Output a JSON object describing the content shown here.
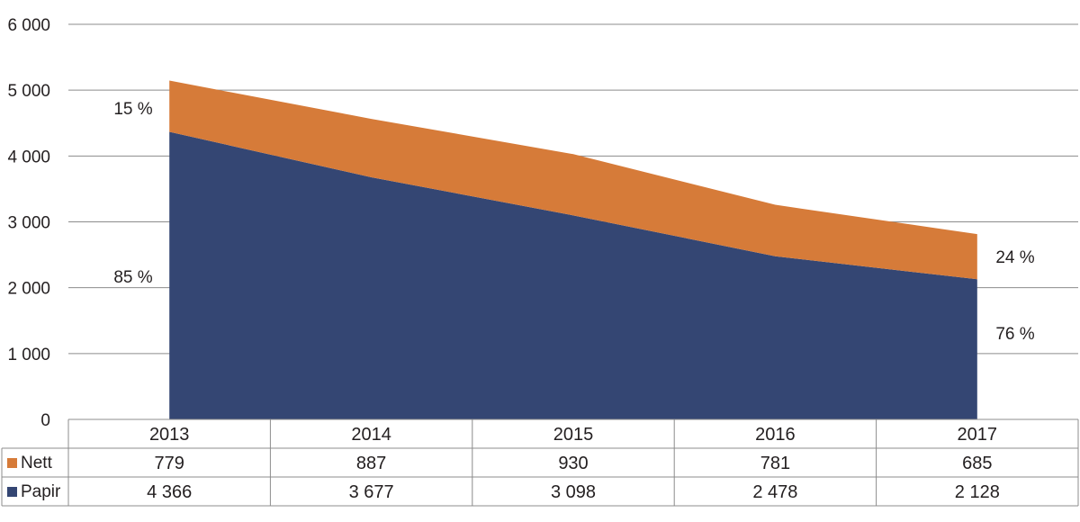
{
  "chart_data": {
    "type": "area",
    "stacked": true,
    "categories": [
      "2013",
      "2014",
      "2015",
      "2016",
      "2017"
    ],
    "series": [
      {
        "name": "Papir",
        "values": [
          4366,
          3677,
          3098,
          2478,
          2128
        ],
        "color": "#344673",
        "value_labels": [
          "4 366",
          "3 677",
          "3 098",
          "2 478",
          "2 128"
        ]
      },
      {
        "name": "Nett",
        "values": [
          779,
          887,
          930,
          781,
          685
        ],
        "color": "#d67b39",
        "value_labels": [
          "779",
          "887",
          "930",
          "781",
          "685"
        ]
      }
    ],
    "ylim": [
      0,
      6000
    ],
    "yticks": [
      0,
      1000,
      2000,
      3000,
      4000,
      5000,
      6000
    ],
    "ytick_labels": [
      "0",
      "1 000",
      "2 000",
      "3 000",
      "4 000",
      "5 000",
      "6 000"
    ],
    "grid": true,
    "annotations": {
      "nett_2013": "15 %",
      "papir_2013": "85 %",
      "nett_2017": "24 %",
      "papir_2017": "76 %"
    },
    "legend_placement": "data table below chart"
  }
}
